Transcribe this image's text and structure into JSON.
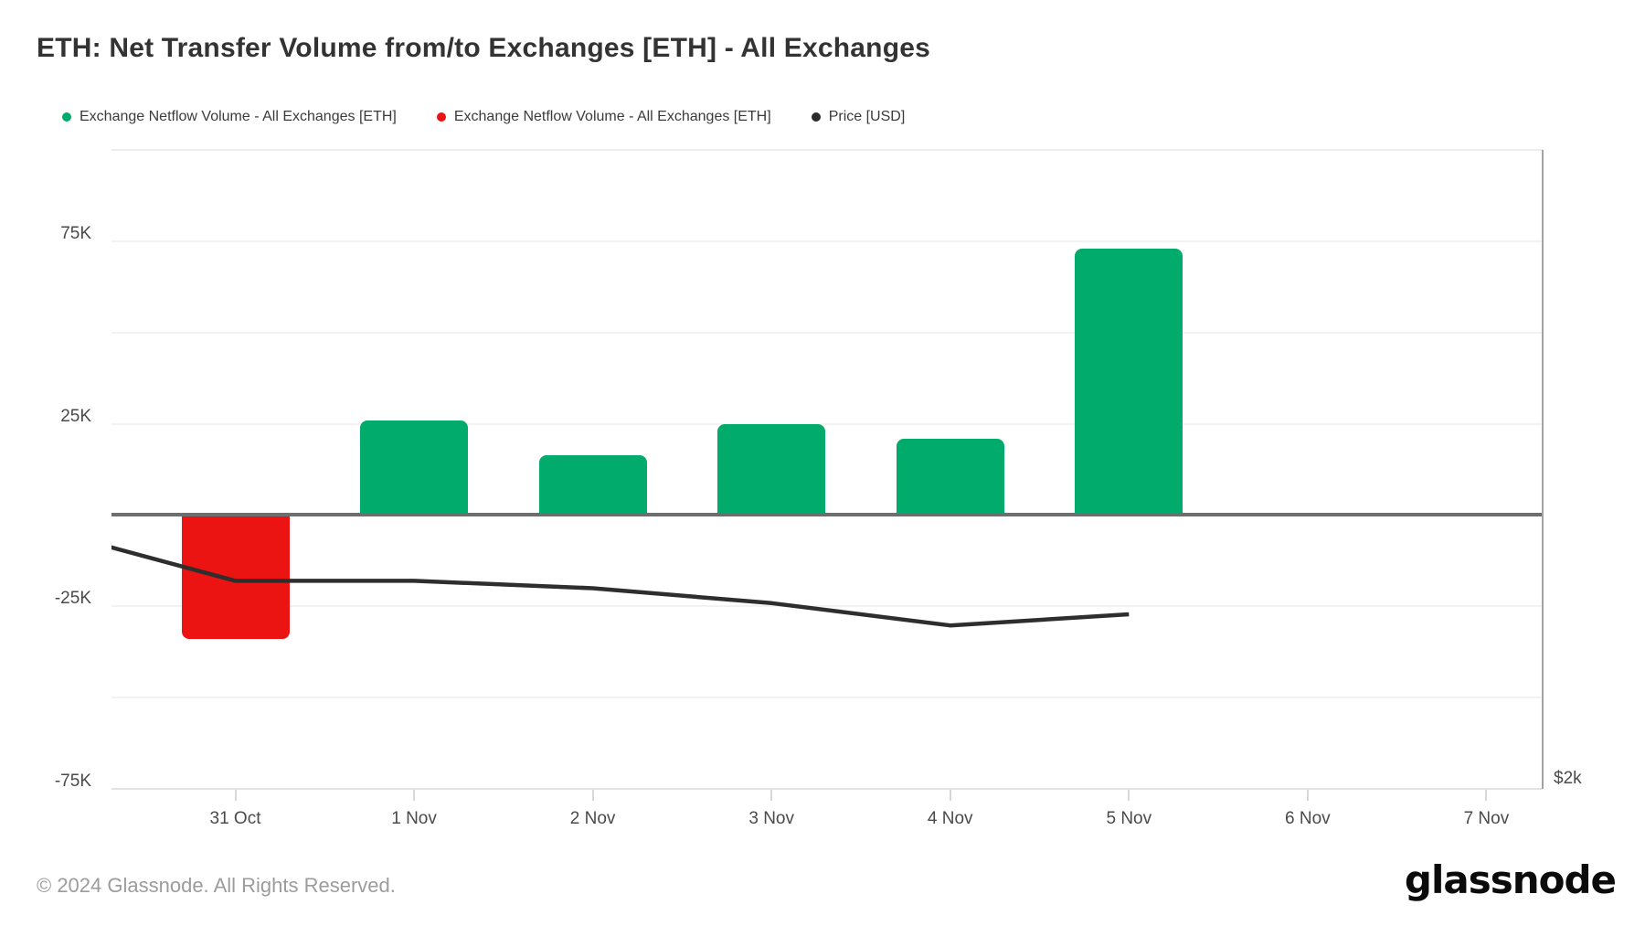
{
  "page": {
    "title": "ETH: Net Transfer Volume from/to Exchanges [ETH] - All Exchanges"
  },
  "legend": [
    {
      "label": "Exchange Netflow Volume - All Exchanges [ETH]",
      "color": "#00ab6b"
    },
    {
      "label": "Exchange Netflow Volume - All Exchanges [ETH]",
      "color": "#ec1313"
    },
    {
      "label": "Price [USD]",
      "color": "#2b2b2b"
    }
  ],
  "chart_data": {
    "type": "bar",
    "title": "ETH: Net Transfer Volume from/to Exchanges [ETH] - All Exchanges",
    "categories": [
      "31 Oct",
      "1 Nov",
      "2 Nov",
      "3 Nov",
      "4 Nov",
      "5 Nov",
      "6 Nov",
      "7 Nov"
    ],
    "series": [
      {
        "name": "Exchange Netflow Volume - All Exchanges [ETH]",
        "type": "bar",
        "unit": "ETH",
        "values": [
          -34000,
          26000,
          16500,
          25000,
          21000,
          73000,
          null,
          null
        ],
        "positive_color": "#00ab6b",
        "negative_color": "#ec1313"
      },
      {
        "name": "Price [USD]",
        "type": "line",
        "unit": "USD",
        "color": "#2e2e2e",
        "values": [
          2530,
          2530,
          2510,
          2470,
          2410,
          2440,
          null,
          null
        ],
        "lead_in_value": 2660
      }
    ],
    "y_axis": {
      "min": -75000,
      "max": 100000,
      "grid_step": 25000,
      "ticks": [
        {
          "value": 75000,
          "label": "75K"
        },
        {
          "value": 25000,
          "label": "25K"
        },
        {
          "value": -25000,
          "label": "-25K"
        },
        {
          "value": -75000,
          "label": "-75K"
        }
      ]
    },
    "y2_axis": {
      "visible_label": "$2k",
      "min": 1970,
      "max": 3690
    },
    "grid": true,
    "legend_position": "top-left"
  },
  "footer": {
    "copyright": "© 2024 Glassnode. All Rights Reserved.",
    "logo_text": "glassnode"
  },
  "colors": {
    "background": "#ffffff",
    "gridline": "#f2f2f2",
    "zero_line": "#6e6e6e",
    "axis_border_right": "#a3a3a3",
    "axis_border_bottom": "#e2e2e2",
    "axis_border_top": "#ededed",
    "tick": "#d8d8d8",
    "text_title": "#333333",
    "text_axis": "#4a4a4a",
    "text_legend": "#3b3b3b",
    "text_footer": "#9c9c9c",
    "logo": "#0b0b0b"
  }
}
